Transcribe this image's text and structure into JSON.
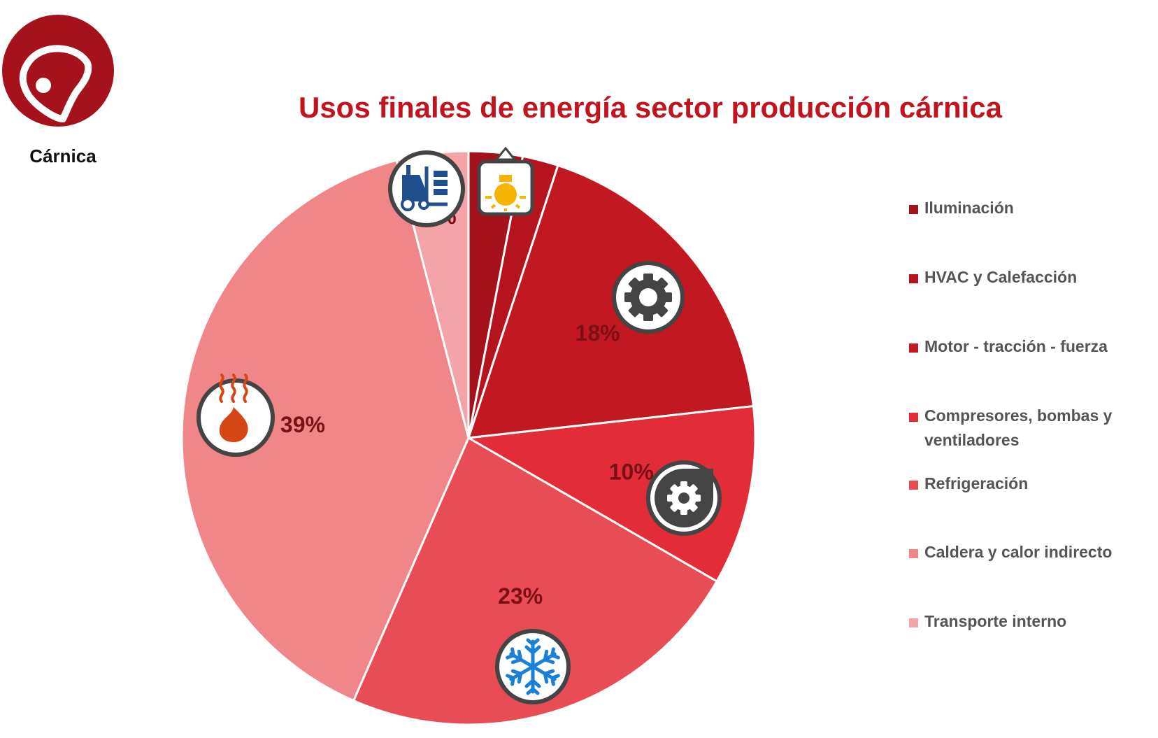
{
  "logo": {
    "label": "Cárnica",
    "icon": "meat-steak-icon",
    "color": "#a5121b"
  },
  "chart_data": {
    "type": "pie",
    "title": "Usos finales de energía sector producción cárnica",
    "legend_position": "right",
    "series": [
      {
        "name": "Iluminación",
        "value": 3,
        "color": "#a5121b",
        "icon": "lightbulb-icon"
      },
      {
        "name": "HVAC y Calefacción",
        "value": 2,
        "color": "#b5141f"
      },
      {
        "name": "Motor - tracción - fuerza",
        "value": 18,
        "color": "#c21822",
        "label": "18%",
        "icon": "gear-icon"
      },
      {
        "name": "Compresores, bombas y ventiladores",
        "value": 10,
        "color": "#e22d38",
        "label": "10%",
        "icon": "compressor-pump-icon"
      },
      {
        "name": "Refrigeración",
        "value": 23,
        "color": "#e84c55",
        "label": "23%",
        "icon": "snowflake-icon"
      },
      {
        "name": "Caldera y calor indirecto",
        "value": 39,
        "color": "#f08688",
        "label": "39%",
        "icon": "flame-heat-icon"
      },
      {
        "name": "Transporte interno",
        "value": 4,
        "color": "#f4a4a7",
        "label": "4%",
        "icon": "forklift-icon"
      }
    ]
  }
}
